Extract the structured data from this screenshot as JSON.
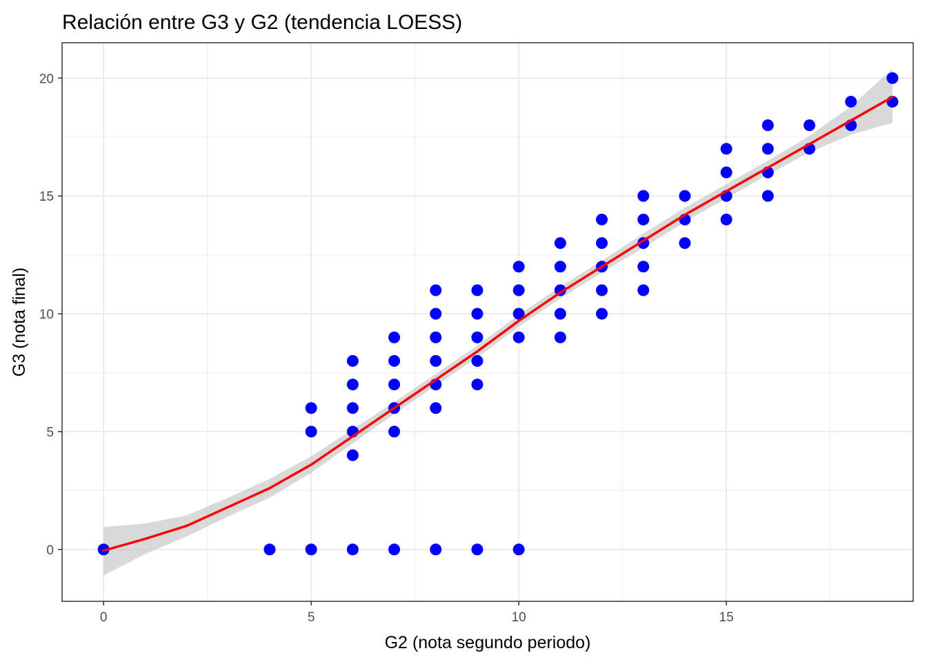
{
  "chart_data": {
    "type": "scatter",
    "title": "Relación entre G3 y G2 (tendencia LOESS)",
    "xlabel": "G2 (nota segundo periodo)",
    "ylabel": "G3 (nota final)",
    "xlim": [
      -1,
      19.5
    ],
    "ylim": [
      -2.2,
      21.5
    ],
    "xticks": [
      0,
      5,
      10,
      15
    ],
    "yticks": [
      0,
      5,
      10,
      15,
      20
    ],
    "x_minor": [
      2.5,
      7.5,
      12.5,
      17.5
    ],
    "y_minor": [
      2.5,
      7.5,
      12.5,
      17.5
    ],
    "grid": true,
    "colors": {
      "points": "#0000ff",
      "trend": "#ff0000",
      "band": "#bfbfbf",
      "grid": "#ebebeb",
      "panel_border": "#333333"
    },
    "points": [
      [
        0,
        0
      ],
      [
        4,
        0
      ],
      [
        5,
        0
      ],
      [
        6,
        0
      ],
      [
        7,
        0
      ],
      [
        8,
        0
      ],
      [
        9,
        0
      ],
      [
        10,
        0
      ],
      [
        5,
        5
      ],
      [
        5,
        6
      ],
      [
        6,
        4
      ],
      [
        6,
        5
      ],
      [
        6,
        6
      ],
      [
        6,
        7
      ],
      [
        6,
        8
      ],
      [
        7,
        5
      ],
      [
        7,
        6
      ],
      [
        7,
        7
      ],
      [
        7,
        8
      ],
      [
        7,
        9
      ],
      [
        8,
        6
      ],
      [
        8,
        7
      ],
      [
        8,
        8
      ],
      [
        8,
        9
      ],
      [
        8,
        10
      ],
      [
        8,
        11
      ],
      [
        9,
        7
      ],
      [
        9,
        8
      ],
      [
        9,
        9
      ],
      [
        9,
        10
      ],
      [
        9,
        11
      ],
      [
        10,
        9
      ],
      [
        10,
        10
      ],
      [
        10,
        11
      ],
      [
        10,
        12
      ],
      [
        11,
        9
      ],
      [
        11,
        10
      ],
      [
        11,
        11
      ],
      [
        11,
        12
      ],
      [
        11,
        13
      ],
      [
        12,
        10
      ],
      [
        12,
        11
      ],
      [
        12,
        12
      ],
      [
        12,
        13
      ],
      [
        12,
        14
      ],
      [
        13,
        11
      ],
      [
        13,
        12
      ],
      [
        13,
        13
      ],
      [
        13,
        14
      ],
      [
        13,
        15
      ],
      [
        14,
        13
      ],
      [
        14,
        14
      ],
      [
        14,
        15
      ],
      [
        15,
        14
      ],
      [
        15,
        15
      ],
      [
        15,
        16
      ],
      [
        15,
        17
      ],
      [
        16,
        15
      ],
      [
        16,
        16
      ],
      [
        16,
        17
      ],
      [
        16,
        18
      ],
      [
        17,
        17
      ],
      [
        17,
        18
      ],
      [
        18,
        18
      ],
      [
        18,
        19
      ],
      [
        19,
        19
      ],
      [
        19,
        20
      ]
    ],
    "trend": {
      "method": "LOESS",
      "x": [
        0,
        1,
        2,
        3,
        4,
        5,
        6,
        7,
        8,
        9,
        10,
        11,
        12,
        13,
        14,
        15,
        16,
        17,
        18,
        19
      ],
      "y": [
        -0.05,
        0.45,
        1.0,
        1.8,
        2.6,
        3.6,
        4.8,
        6.0,
        7.2,
        8.4,
        9.7,
        10.9,
        12.0,
        13.1,
        14.2,
        15.2,
        16.2,
        17.2,
        18.2,
        19.2
      ],
      "lower": [
        -1.1,
        -0.2,
        0.55,
        1.4,
        2.2,
        3.25,
        4.5,
        5.75,
        6.95,
        8.15,
        9.45,
        10.65,
        11.75,
        12.8,
        13.9,
        14.9,
        15.9,
        16.85,
        17.6,
        18.1
      ],
      "upper": [
        0.95,
        1.1,
        1.45,
        2.2,
        3.0,
        3.95,
        5.1,
        6.25,
        7.45,
        8.65,
        9.95,
        11.15,
        12.25,
        13.4,
        14.5,
        15.5,
        16.5,
        17.55,
        18.8,
        20.4
      ]
    }
  }
}
